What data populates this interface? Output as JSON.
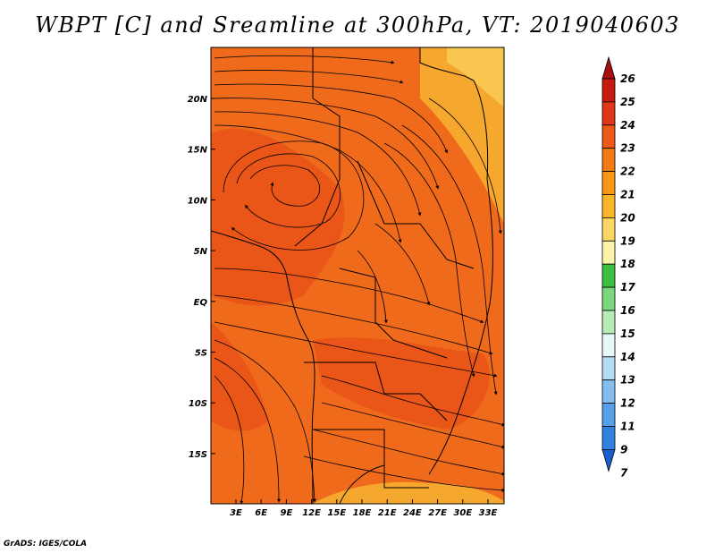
{
  "title": "WBPT [C] and Sreamline at 300hPa, VT: 2019040603",
  "credit": "GrADS: IGES/COLA",
  "map": {
    "lat_labels": [
      "20N",
      "15N",
      "10N",
      "5N",
      "EQ",
      "5S",
      "10S",
      "15S"
    ],
    "lon_labels": [
      "3E",
      "6E",
      "9E",
      "12E",
      "15E",
      "18E",
      "21E",
      "24E",
      "27E",
      "30E",
      "33E"
    ],
    "field_colors": {
      "dominant": "#f06a1c",
      "warm_patch": "#ea5518",
      "cool_patch": "#f5a82d",
      "light_patch": "#f9c650"
    }
  },
  "colorbar": {
    "levels": [
      "26",
      "25",
      "24",
      "23",
      "22",
      "21",
      "20",
      "19",
      "18",
      "17",
      "16",
      "15",
      "14",
      "13",
      "12",
      "11",
      "9",
      "7"
    ],
    "colors": [
      "#a50f0f",
      "#c81b0f",
      "#e0371a",
      "#eb5a16",
      "#f47a14",
      "#f89716",
      "#fbb52a",
      "#fbd663",
      "#faf3a8",
      "#3fbf3f",
      "#7cd87c",
      "#b6ecb6",
      "#e8f8f8",
      "#b4dcf5",
      "#82bff0",
      "#55a0e8",
      "#3182e0",
      "#1a5fd0"
    ]
  }
}
